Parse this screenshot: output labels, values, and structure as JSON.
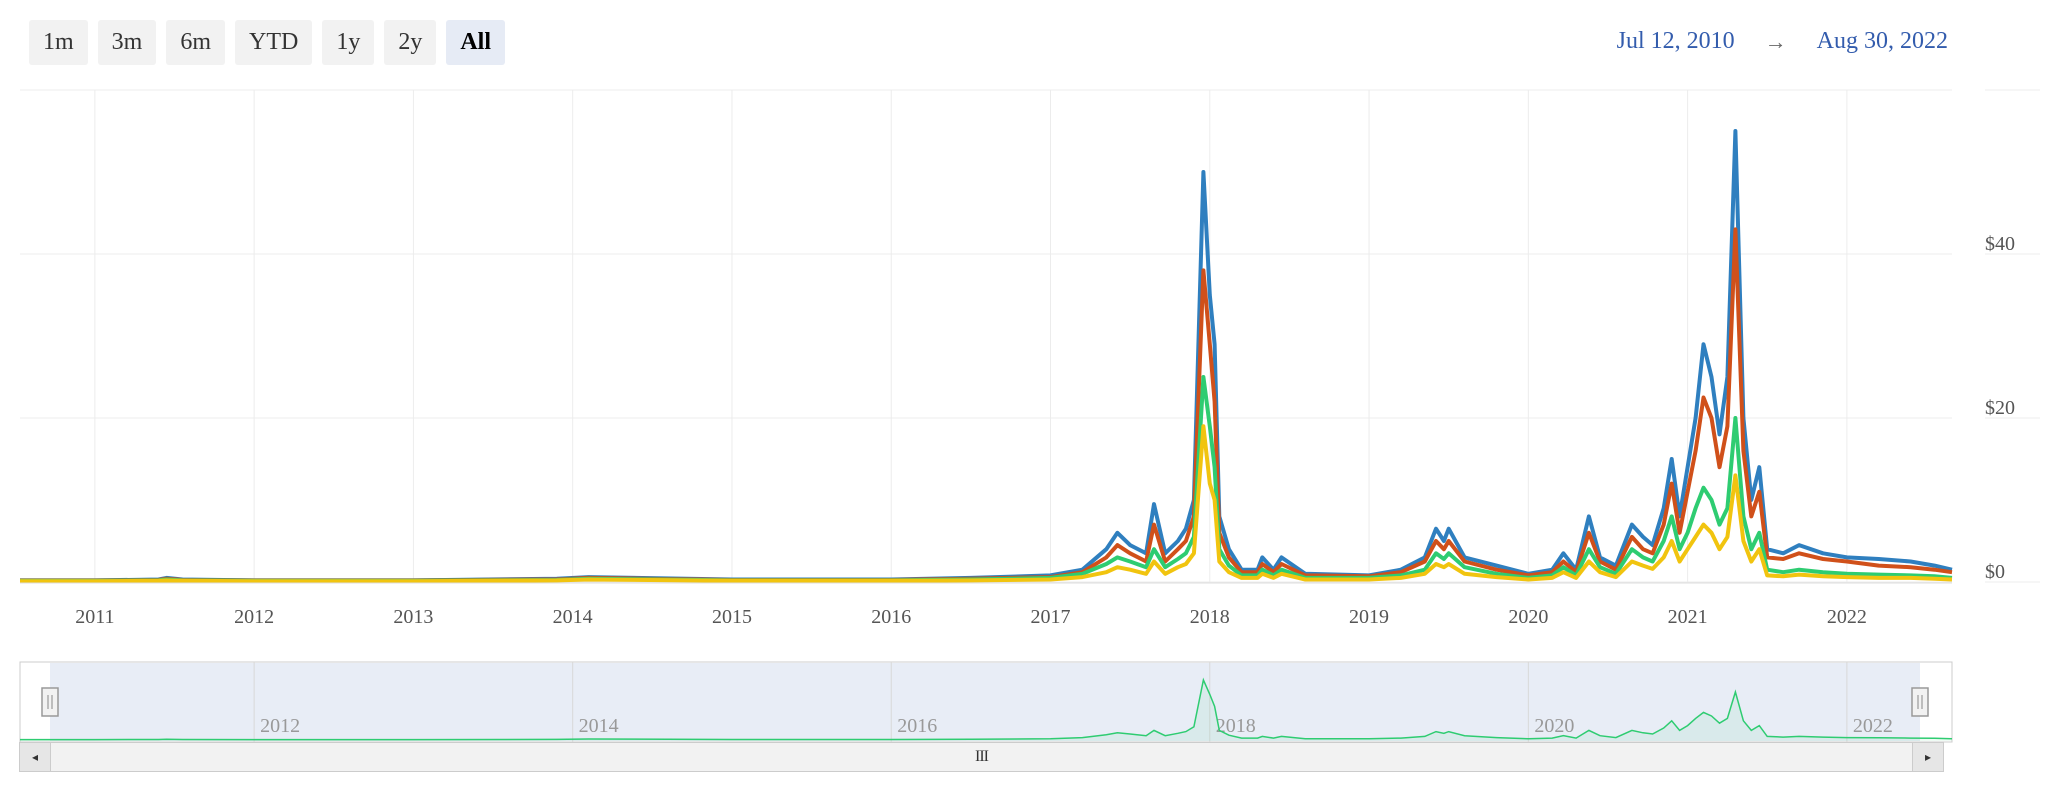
{
  "range_buttons": [
    {
      "label": "1m",
      "active": false
    },
    {
      "label": "3m",
      "active": false
    },
    {
      "label": "6m",
      "active": false
    },
    {
      "label": "YTD",
      "active": false
    },
    {
      "label": "1y",
      "active": false
    },
    {
      "label": "2y",
      "active": false
    },
    {
      "label": "All",
      "active": true
    }
  ],
  "date_range": {
    "from": "Jul 12, 2010",
    "arrow": "→",
    "to": "Aug 30, 2022"
  },
  "navigator": {
    "scrollbar_grip": "III",
    "left_arrow": "◂",
    "right_arrow": "▸"
  },
  "chart_data": {
    "type": "line",
    "xlim": [
      2010.53,
      2022.66
    ],
    "ylim": [
      0,
      60
    ],
    "y_ticks": [
      0,
      20,
      40
    ],
    "y_tick_labels": [
      "$0",
      "$20",
      "$40"
    ],
    "x_ticks": [
      2011,
      2012,
      2013,
      2014,
      2015,
      2016,
      2017,
      2018,
      2019,
      2020,
      2021,
      2022
    ],
    "x_tick_labels": [
      "2011",
      "2012",
      "2013",
      "2014",
      "2015",
      "2016",
      "2017",
      "2018",
      "2019",
      "2020",
      "2021",
      "2022"
    ],
    "navigator_x_ticks": [
      2012,
      2014,
      2016,
      2018,
      2020,
      2022
    ],
    "navigator_x_tick_labels": [
      "2012",
      "2014",
      "2016",
      "2018",
      "2020",
      "2022"
    ],
    "grid": true,
    "legend": "none",
    "x": [
      2010.53,
      2011.0,
      2011.4,
      2011.45,
      2011.55,
      2012.0,
      2013.0,
      2013.9,
      2014.1,
      2015.0,
      2016.0,
      2016.5,
      2017.0,
      2017.2,
      2017.35,
      2017.42,
      2017.5,
      2017.6,
      2017.65,
      2017.72,
      2017.8,
      2017.85,
      2017.9,
      2017.96,
      2018.0,
      2018.03,
      2018.06,
      2018.12,
      2018.2,
      2018.3,
      2018.33,
      2018.4,
      2018.45,
      2018.6,
      2019.0,
      2019.2,
      2019.35,
      2019.42,
      2019.47,
      2019.5,
      2019.6,
      2019.8,
      2020.0,
      2020.15,
      2020.22,
      2020.3,
      2020.38,
      2020.45,
      2020.55,
      2020.65,
      2020.72,
      2020.78,
      2020.85,
      2020.9,
      2020.95,
      2021.0,
      2021.05,
      2021.1,
      2021.15,
      2021.2,
      2021.25,
      2021.3,
      2021.35,
      2021.4,
      2021.45,
      2021.5,
      2021.6,
      2021.7,
      2021.85,
      2022.0,
      2022.2,
      2022.4,
      2022.55,
      2022.66
    ],
    "series": [
      {
        "color": "#2f7fbf",
        "values": [
          0.2,
          0.2,
          0.3,
          0.5,
          0.3,
          0.2,
          0.2,
          0.4,
          0.6,
          0.3,
          0.3,
          0.5,
          0.8,
          1.5,
          4.0,
          6.0,
          4.5,
          3.5,
          9.5,
          3.5,
          5.0,
          6.5,
          10.0,
          50.0,
          35.0,
          29.0,
          8.0,
          4.0,
          1.5,
          1.5,
          3.0,
          1.5,
          3.0,
          1.0,
          0.8,
          1.5,
          3.0,
          6.5,
          5.0,
          6.5,
          3.0,
          2.0,
          1.0,
          1.5,
          3.5,
          1.5,
          8.0,
          3.0,
          2.0,
          7.0,
          5.5,
          4.5,
          9.0,
          15.0,
          8.0,
          14.0,
          20.0,
          29.0,
          25.0,
          18.0,
          25.0,
          55.0,
          20.0,
          10.0,
          14.0,
          4.0,
          3.5,
          4.5,
          3.5,
          3.0,
          2.8,
          2.5,
          2.0,
          1.5
        ]
      },
      {
        "color": "#d0501a",
        "values": [
          0.2,
          0.2,
          0.25,
          0.4,
          0.25,
          0.2,
          0.2,
          0.3,
          0.5,
          0.25,
          0.25,
          0.4,
          0.6,
          1.2,
          3.0,
          4.5,
          3.5,
          2.5,
          7.0,
          2.5,
          4.0,
          5.0,
          8.0,
          38.0,
          29.0,
          22.0,
          6.0,
          3.0,
          1.2,
          1.2,
          2.2,
          1.2,
          2.2,
          0.8,
          0.7,
          1.2,
          2.5,
          5.0,
          4.0,
          5.0,
          2.5,
          1.5,
          0.8,
          1.2,
          2.5,
          1.2,
          6.0,
          2.5,
          1.5,
          5.5,
          4.0,
          3.5,
          7.0,
          12.0,
          6.0,
          11.0,
          16.0,
          22.5,
          20.0,
          14.0,
          19.0,
          43.0,
          16.0,
          8.0,
          11.0,
          3.0,
          2.8,
          3.5,
          2.8,
          2.5,
          2.0,
          1.8,
          1.5,
          1.2
        ]
      },
      {
        "color": "#2ecc71",
        "values": [
          0.15,
          0.15,
          0.2,
          0.3,
          0.2,
          0.15,
          0.15,
          0.25,
          0.4,
          0.2,
          0.2,
          0.3,
          0.5,
          1.0,
          2.2,
          3.0,
          2.5,
          1.8,
          4.0,
          1.8,
          2.8,
          3.5,
          5.5,
          25.0,
          19.0,
          14.0,
          4.0,
          2.0,
          0.8,
          0.8,
          1.5,
          0.8,
          1.5,
          0.5,
          0.5,
          0.8,
          1.5,
          3.5,
          2.8,
          3.5,
          1.8,
          1.0,
          0.5,
          0.8,
          1.8,
          0.8,
          4.0,
          1.8,
          1.0,
          4.0,
          3.0,
          2.5,
          5.0,
          8.0,
          4.0,
          6.0,
          9.0,
          11.5,
          10.0,
          7.0,
          9.0,
          20.0,
          8.0,
          4.0,
          6.0,
          1.5,
          1.2,
          1.5,
          1.2,
          1.0,
          0.9,
          0.8,
          0.7,
          0.5
        ]
      },
      {
        "color": "#f1c40f",
        "values": [
          0.1,
          0.1,
          0.15,
          0.2,
          0.15,
          0.1,
          0.1,
          0.2,
          0.3,
          0.15,
          0.15,
          0.2,
          0.3,
          0.6,
          1.2,
          1.8,
          1.5,
          1.0,
          2.5,
          1.0,
          1.8,
          2.2,
          3.5,
          19.0,
          12.0,
          10.0,
          2.5,
          1.2,
          0.5,
          0.5,
          1.0,
          0.5,
          1.0,
          0.3,
          0.3,
          0.5,
          1.0,
          2.2,
          1.8,
          2.2,
          1.0,
          0.6,
          0.3,
          0.5,
          1.2,
          0.5,
          2.5,
          1.2,
          0.6,
          2.5,
          2.0,
          1.6,
          3.0,
          5.0,
          2.5,
          4.0,
          5.5,
          7.0,
          6.0,
          4.0,
          5.5,
          13.0,
          5.0,
          2.5,
          4.0,
          0.8,
          0.7,
          0.9,
          0.7,
          0.6,
          0.5,
          0.5,
          0.4,
          0.3
        ]
      }
    ],
    "navigator_series_color": "#2ecc71"
  }
}
